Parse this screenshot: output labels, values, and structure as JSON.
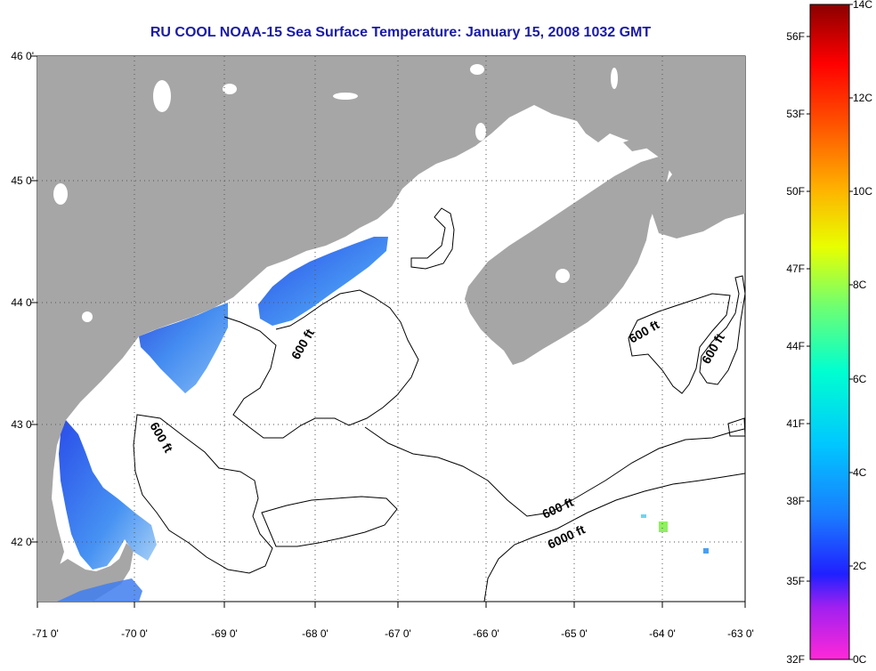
{
  "title": "RU COOL  NOAA-15  Sea Surface Temperature:  January 15, 2008 1032 GMT",
  "map": {
    "lon_ticks": [
      "-71 0'",
      "-70 0'",
      "-69 0'",
      "-68 0'",
      "-67 0'",
      "-66 0'",
      "-65 0'",
      "-64 0'",
      "-63 0'"
    ],
    "lat_ticks": [
      "46 0'",
      "45 0'",
      "44 0'",
      "43 0'",
      "42 0'"
    ],
    "contour_labels": [
      "600 ft",
      "600 ft",
      "600 ft",
      "600 ft",
      "600 ft",
      "6000 ft"
    ],
    "colors": {
      "land": "#a6a6a6",
      "water_nodata": "#ffffff",
      "grid": "#555555"
    }
  },
  "colorbar": {
    "fahrenheit_labels": [
      "56F",
      "53F",
      "50F",
      "47F",
      "44F",
      "41F",
      "38F",
      "35F",
      "32F"
    ],
    "celsius_labels": [
      "14C",
      "12C",
      "10C",
      "8C",
      "6C",
      "4C",
      "2C",
      "0C"
    ],
    "celsius_range": [
      0,
      14
    ]
  }
}
